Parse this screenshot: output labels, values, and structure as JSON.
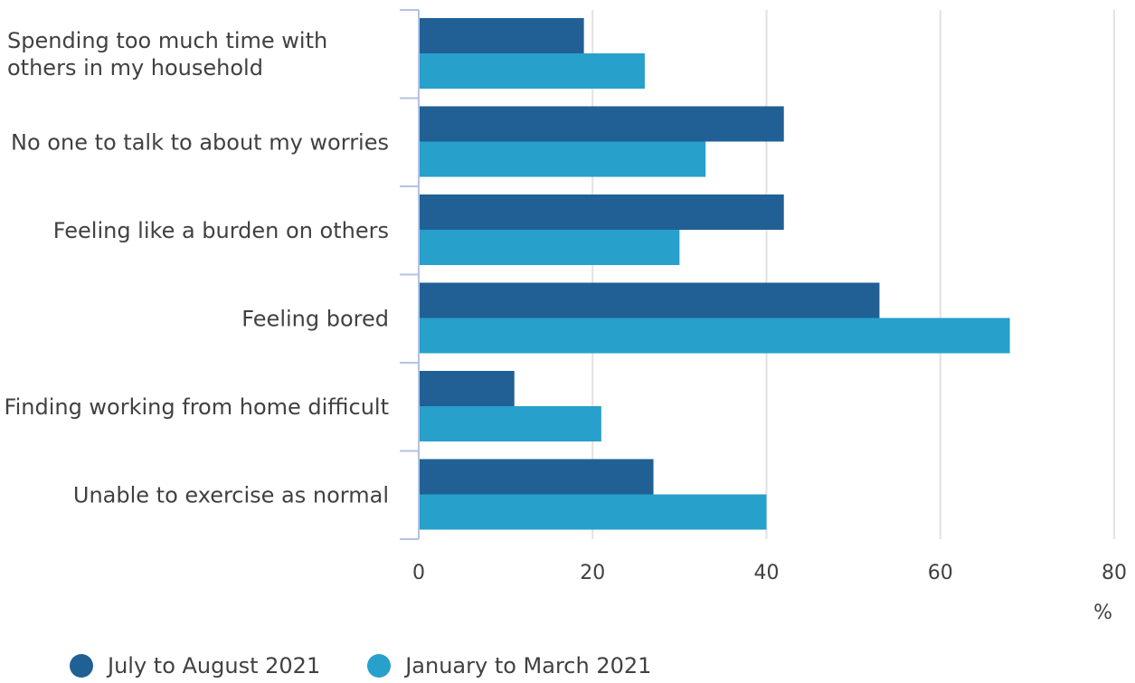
{
  "chart_data": {
    "type": "bar",
    "orientation": "horizontal",
    "categories": [
      [
        "Spending too much time with",
        "others in my household"
      ],
      [
        "No one to talk to about my worries"
      ],
      [
        "Feeling like a burden on others"
      ],
      [
        "Feeling bored"
      ],
      [
        "Finding working from home difficult"
      ],
      [
        "Unable to exercise as normal"
      ]
    ],
    "series": [
      {
        "name": "July to August 2021",
        "color": "#206095",
        "values": [
          19,
          42,
          42,
          53,
          11,
          27
        ]
      },
      {
        "name": "January to March 2021",
        "color": "#27a0cc",
        "values": [
          26,
          33,
          30,
          68,
          21,
          40
        ]
      }
    ],
    "xlim": [
      0,
      80
    ],
    "xticks": [
      0,
      20,
      40,
      60,
      80
    ],
    "xunit": "%",
    "grid": true,
    "legend_position": "bottom-left"
  },
  "colors": {
    "gridline": "#e2e2e3",
    "axis": "#b3c3e0",
    "text": "#414042"
  }
}
